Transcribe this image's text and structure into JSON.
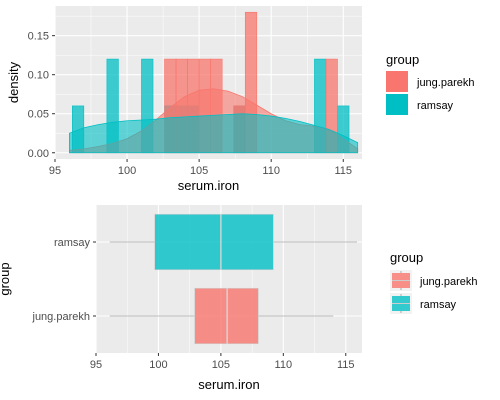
{
  "chart_data": [
    {
      "type": "histogram-density",
      "xlabel": "serum.iron",
      "ylabel": "density",
      "xlim": [
        95,
        116.3
      ],
      "ylim": [
        -0.008,
        0.188
      ],
      "xticks": [
        95,
        100,
        105,
        110,
        115
      ],
      "yticks": [
        0.0,
        0.05,
        0.1,
        0.15
      ],
      "ytick_labels": [
        "0.00",
        "0.05",
        "0.10",
        "0.15"
      ],
      "grid": true,
      "legend": {
        "title": "group",
        "position": "right",
        "entries": [
          "jung.parekh",
          "ramsay"
        ]
      },
      "colors": {
        "jung.parekh": "#F8766D",
        "ramsay": "#00BFC4"
      },
      "bin_width": 0.8,
      "series": [
        {
          "name": "ramsay",
          "bins": [
            {
              "x0": 96.2,
              "x1": 97.0,
              "density": 0.06
            },
            {
              "x0": 98.6,
              "x1": 99.4,
              "density": 0.12
            },
            {
              "x0": 101.0,
              "x1": 101.8,
              "density": 0.12
            },
            {
              "x0": 102.6,
              "x1": 103.4,
              "density": 0.06
            },
            {
              "x0": 103.4,
              "x1": 104.2,
              "density": 0.06
            },
            {
              "x0": 104.2,
              "x1": 105.0,
              "density": 0.06
            },
            {
              "x0": 107.4,
              "x1": 108.2,
              "density": 0.06
            },
            {
              "x0": 113.0,
              "x1": 113.8,
              "density": 0.12
            },
            {
              "x0": 114.6,
              "x1": 115.4,
              "density": 0.06
            }
          ],
          "density_curve": {
            "x": [
              96,
              97,
              98,
              99,
              100,
              101,
              102,
              103,
              104,
              105,
              106,
              107,
              108,
              109,
              110,
              111,
              112,
              113,
              114,
              115,
              116
            ],
            "y": [
              0.025,
              0.032,
              0.036,
              0.039,
              0.041,
              0.042,
              0.043,
              0.045,
              0.046,
              0.047,
              0.048,
              0.049,
              0.05,
              0.049,
              0.047,
              0.044,
              0.04,
              0.035,
              0.03,
              0.022,
              0.013
            ]
          }
        },
        {
          "name": "jung.parekh",
          "bins": [
            {
              "x0": 102.6,
              "x1": 103.4,
              "density": 0.12
            },
            {
              "x0": 103.4,
              "x1": 104.2,
              "density": 0.12
            },
            {
              "x0": 104.2,
              "x1": 105.0,
              "density": 0.12
            },
            {
              "x0": 105.0,
              "x1": 105.8,
              "density": 0.12
            },
            {
              "x0": 105.8,
              "x1": 106.6,
              "density": 0.12
            },
            {
              "x0": 107.4,
              "x1": 108.2,
              "density": 0.06
            },
            {
              "x0": 108.2,
              "x1": 109.0,
              "density": 0.18
            },
            {
              "x0": 113.8,
              "x1": 114.6,
              "density": 0.12
            }
          ],
          "density_curve": {
            "x": [
              96,
              97,
              98,
              99,
              100,
              101,
              102,
              103,
              104,
              105,
              106,
              107,
              108,
              109,
              110,
              111,
              112,
              113,
              114,
              115,
              116
            ],
            "y": [
              0.003,
              0.005,
              0.008,
              0.012,
              0.018,
              0.028,
              0.042,
              0.058,
              0.072,
              0.08,
              0.082,
              0.079,
              0.072,
              0.061,
              0.05,
              0.041,
              0.036,
              0.034,
              0.03,
              0.018,
              0.005
            ]
          }
        }
      ]
    },
    {
      "type": "boxplot",
      "orientation": "horizontal",
      "xlabel": "serum.iron",
      "ylabel": "group",
      "xlim": [
        95,
        116.3
      ],
      "xticks": [
        95,
        100,
        105,
        110,
        115
      ],
      "categories": [
        "jung.parekh",
        "ramsay"
      ],
      "grid": true,
      "legend": {
        "title": "group",
        "position": "right",
        "entries": [
          "jung.parekh",
          "ramsay"
        ]
      },
      "colors": {
        "jung.parekh": "#F8766D",
        "ramsay": "#00BFC4"
      },
      "boxes": [
        {
          "name": "jung.parekh",
          "min": 96.1,
          "q1": 102.9,
          "median": 105.5,
          "q3": 108.0,
          "max": 114.0
        },
        {
          "name": "ramsay",
          "min": 96.1,
          "q1": 99.7,
          "median": 105.0,
          "q3": 109.2,
          "max": 115.9
        }
      ]
    }
  ]
}
